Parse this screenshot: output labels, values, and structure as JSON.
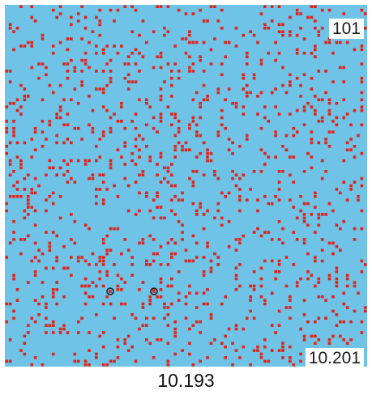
{
  "labels": {
    "top_right": "101",
    "bottom_right": "10.201",
    "caption": "10.193"
  },
  "colors": {
    "background": "#6fc3e6",
    "dots": "#e0241b",
    "highlight_ring": "#1a1a1a"
  }
}
